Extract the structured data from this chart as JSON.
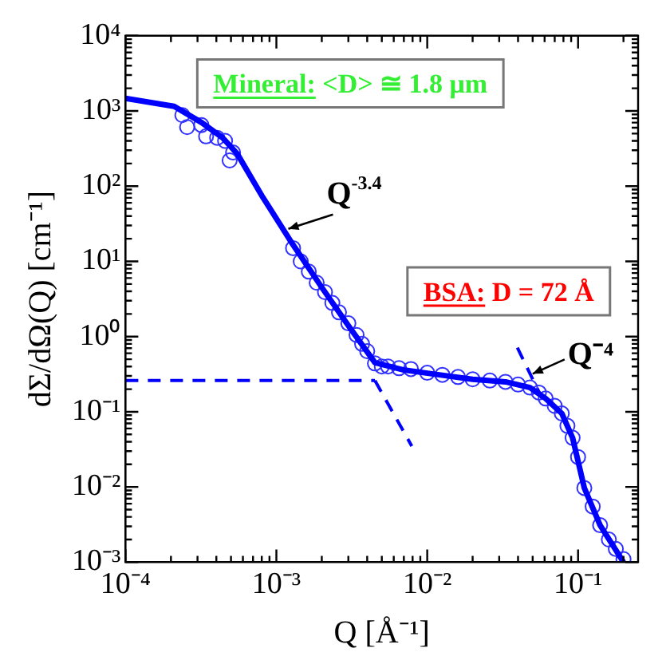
{
  "chart_data": {
    "type": "scatter",
    "xlabel": "Q [Å⁻¹]",
    "ylabel": "dΣ/dΩ(Q) [cm⁻¹]",
    "log": "xy",
    "grid": false,
    "legend": false,
    "xlim": [
      0.0001,
      0.25
    ],
    "ylim": [
      0.001,
      10000
    ],
    "xticks": [
      {
        "value": 0.0001,
        "label": "10⁻⁴"
      },
      {
        "value": 0.001,
        "label": "10⁻³"
      },
      {
        "value": 0.01,
        "label": "10⁻²"
      },
      {
        "value": 0.1,
        "label": "10⁻¹"
      }
    ],
    "yticks": [
      {
        "value": 0.001,
        "label": "10⁻³"
      },
      {
        "value": 0.01,
        "label": "10⁻²"
      },
      {
        "value": 0.1,
        "label": "10⁻¹"
      },
      {
        "value": 1,
        "label": "10⁰"
      },
      {
        "value": 10,
        "label": "10¹"
      },
      {
        "value": 100,
        "label": "10²"
      },
      {
        "value": 1000,
        "label": "10³"
      },
      {
        "value": 10000,
        "label": "10⁴"
      }
    ],
    "annotations": [
      "Mineral: <D> ≅ 1.8 μm",
      "BSA: D = 72 Å",
      {
        "text": "Q$^{-3.4}$",
        "x": 0.0012,
        "y": 27
      },
      {
        "text": "Q⁻⁴",
        "x": 0.05,
        "y": 0.32
      }
    ],
    "series": [
      {
        "type": "line",
        "color": "#0000ff",
        "line_style": "solid",
        "marker": "none",
        "x": [
          0.0001,
          0.00021,
          0.00032,
          0.00044,
          0.00055,
          0.0008,
          0.00128,
          0.002,
          0.003,
          0.0045,
          0.007,
          0.012,
          0.02,
          0.033,
          0.048,
          0.061,
          0.078,
          0.092,
          0.11,
          0.14,
          0.2
        ],
        "values": [
          1470,
          1150,
          700,
          440,
          270,
          75,
          17,
          4.5,
          1.4,
          0.45,
          0.36,
          0.31,
          0.27,
          0.25,
          0.21,
          0.15,
          0.095,
          0.045,
          0.0097,
          0.0031,
          0.001
        ]
      },
      {
        "color": "#3333ff",
        "marker": "circle",
        "x": [
          0.000238,
          0.000256,
          0.000318,
          0.000342,
          0.000405,
          0.000457,
          0.00049,
          0.000516,
          0.00129,
          0.00145,
          0.00164,
          0.00185,
          0.0021,
          0.00235,
          0.0026,
          0.003,
          0.0034,
          0.0037,
          0.004,
          0.0045,
          0.005,
          0.0055,
          0.0065,
          0.0078,
          0.01,
          0.0126,
          0.016,
          0.02,
          0.026,
          0.033,
          0.04,
          0.048,
          0.055,
          0.061,
          0.07,
          0.078,
          0.085,
          0.092,
          0.1,
          0.11,
          0.125,
          0.14,
          0.16,
          0.178,
          0.2
        ],
        "values": [
          880,
          610,
          650,
          460,
          440,
          400,
          220,
          280,
          15,
          10,
          7.3,
          5.2,
          3.9,
          2.8,
          2.1,
          1.5,
          1.05,
          0.8,
          0.64,
          0.44,
          0.4,
          0.4,
          0.38,
          0.37,
          0.33,
          0.31,
          0.29,
          0.27,
          0.26,
          0.25,
          0.23,
          0.21,
          0.18,
          0.15,
          0.12,
          0.095,
          0.065,
          0.045,
          0.025,
          0.0097,
          0.0055,
          0.0031,
          0.002,
          0.0015,
          0.0011
        ]
      },
      {
        "type": "line",
        "color": "#0000ff",
        "line_style": "dashed",
        "marker": "none",
        "x": [
          0.0001,
          0.0045
        ],
        "values": [
          0.26,
          0.26
        ]
      },
      {
        "type": "line",
        "color": "#0000ff",
        "line_style": "dashed",
        "marker": "none",
        "x": [
          0.0045,
          0.0079
        ],
        "values": [
          0.26,
          0.035
        ]
      },
      {
        "type": "line",
        "color": "#0000ff",
        "line_style": "dashed",
        "marker": "none",
        "x": [
          0.0396,
          0.058
        ],
        "values": [
          0.71,
          0.148
        ]
      }
    ]
  }
}
